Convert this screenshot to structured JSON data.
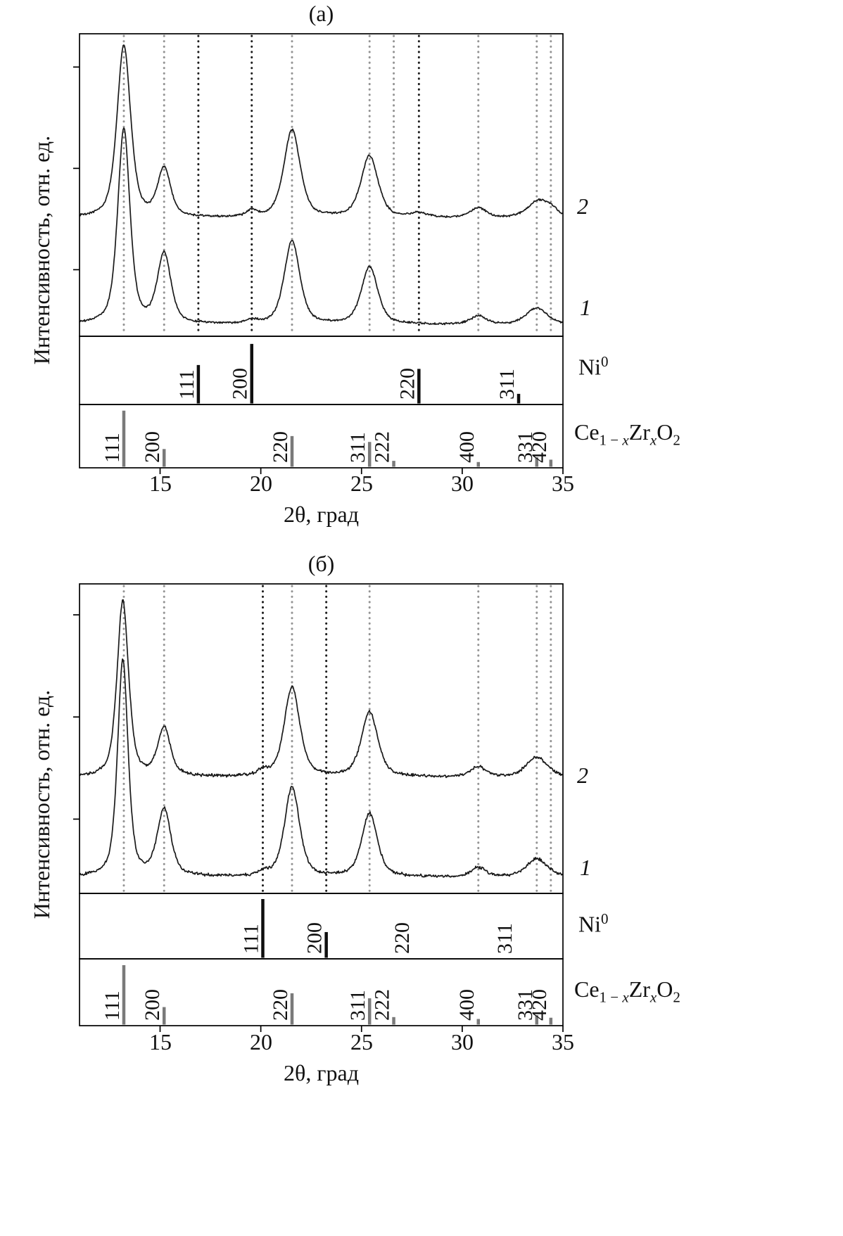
{
  "chart_data": [
    {
      "type": "line",
      "title": "(а)",
      "xlabel": "2θ, град",
      "ylabel": "Интенсивность, отн. ед.",
      "xlim": [
        11,
        35
      ],
      "x_ticks": [
        "15",
        "20",
        "25",
        "30",
        "35"
      ],
      "legend_position": "right",
      "ref_lines": {
        "gray_2theta": [
          13.2,
          15.2,
          21.55,
          25.4,
          26.6,
          30.8,
          33.7,
          34.4
        ],
        "black_2theta": [
          16.9,
          19.55,
          27.85
        ]
      },
      "series": [
        {
          "name": "2",
          "baseline": 0.61,
          "noise": 0.004,
          "peaks": [
            {
              "x": 13.2,
              "h": 0.57,
              "w": 0.4
            },
            {
              "x": 15.2,
              "h": 0.16,
              "w": 0.38
            },
            {
              "x": 19.55,
              "h": 0.02,
              "w": 0.3
            },
            {
              "x": 21.55,
              "h": 0.29,
              "w": 0.48
            },
            {
              "x": 25.4,
              "h": 0.205,
              "w": 0.5
            },
            {
              "x": 27.85,
              "h": 0.014,
              "w": 0.5
            },
            {
              "x": 30.8,
              "h": 0.033,
              "w": 0.45
            },
            {
              "x": 33.8,
              "h": 0.058,
              "w": 0.65
            },
            {
              "x": 34.45,
              "h": 0.016,
              "w": 0.35
            }
          ]
        },
        {
          "name": "1",
          "baseline": 0.962,
          "noise": 0.004,
          "peaks": [
            {
              "x": 13.2,
              "h": 0.645,
              "w": 0.36
            },
            {
              "x": 15.2,
              "h": 0.23,
              "w": 0.4
            },
            {
              "x": 19.55,
              "h": 0.012,
              "w": 0.3
            },
            {
              "x": 21.55,
              "h": 0.275,
              "w": 0.46
            },
            {
              "x": 25.4,
              "h": 0.19,
              "w": 0.48
            },
            {
              "x": 30.8,
              "h": 0.028,
              "w": 0.45
            },
            {
              "x": 33.7,
              "h": 0.055,
              "w": 0.62
            }
          ]
        }
      ],
      "ni_row": {
        "sticks": [
          {
            "x": 16.9,
            "h": 0.6,
            "hkl": "111"
          },
          {
            "x": 19.55,
            "h": 0.93,
            "hkl": "200"
          },
          {
            "x": 27.85,
            "h": 0.54,
            "hkl": "220"
          },
          {
            "x": 32.8,
            "h": 0.15,
            "hkl": "311"
          }
        ]
      },
      "cezr_row": {
        "sticks": [
          {
            "x": 13.2,
            "h": 0.95,
            "hkl": "111"
          },
          {
            "x": 15.2,
            "h": 0.3,
            "hkl": "200"
          },
          {
            "x": 21.55,
            "h": 0.52,
            "hkl": "220"
          },
          {
            "x": 25.4,
            "h": 0.42,
            "hkl": "311"
          },
          {
            "x": 26.6,
            "h": 0.1,
            "hkl": "222"
          },
          {
            "x": 30.8,
            "h": 0.08,
            "hkl": "400"
          },
          {
            "x": 33.7,
            "h": 0.16,
            "hkl": "331"
          },
          {
            "x": 34.4,
            "h": 0.12,
            "hkl": "420"
          }
        ]
      },
      "ni_label": {
        "base": "Ni",
        "sup": "0"
      },
      "cezr_label": {
        "p1": "Ce",
        "sub1": "1 − ",
        "sub1x": "x",
        "p2": "Zr",
        "sub2x": "x",
        "p3": "O",
        "sub3": "2"
      }
    },
    {
      "type": "line",
      "title": "(б)",
      "xlabel": "2θ, град",
      "ylabel": "Интенсивность, отн. ед.",
      "xlim": [
        11,
        35
      ],
      "x_ticks": [
        "15",
        "20",
        "25",
        "30",
        "35"
      ],
      "legend_position": "right",
      "ref_lines": {
        "gray_2theta": [
          13.2,
          15.2,
          21.55,
          25.4,
          30.8,
          33.7,
          34.4
        ],
        "black_2theta": [
          20.1,
          23.25
        ]
      },
      "series": [
        {
          "name": "2",
          "baseline": 0.625,
          "noise": 0.0058,
          "peaks": [
            {
              "x": 13.15,
              "h": 0.568,
              "w": 0.34
            },
            {
              "x": 15.2,
              "h": 0.155,
              "w": 0.38
            },
            {
              "x": 20.1,
              "h": 0.016,
              "w": 0.3
            },
            {
              "x": 21.55,
              "h": 0.29,
              "w": 0.46
            },
            {
              "x": 25.4,
              "h": 0.21,
              "w": 0.48
            },
            {
              "x": 30.8,
              "h": 0.032,
              "w": 0.45
            },
            {
              "x": 33.7,
              "h": 0.064,
              "w": 0.62
            }
          ]
        },
        {
          "name": "1",
          "baseline": 0.948,
          "noise": 0.0058,
          "peaks": [
            {
              "x": 13.15,
              "h": 0.7,
              "w": 0.31
            },
            {
              "x": 15.2,
              "h": 0.215,
              "w": 0.4
            },
            {
              "x": 20.1,
              "h": 0.012,
              "w": 0.3
            },
            {
              "x": 21.55,
              "h": 0.29,
              "w": 0.44
            },
            {
              "x": 25.4,
              "h": 0.205,
              "w": 0.46
            },
            {
              "x": 30.8,
              "h": 0.03,
              "w": 0.45
            },
            {
              "x": 33.7,
              "h": 0.06,
              "w": 0.62
            }
          ]
        }
      ],
      "ni_row": {
        "sticks": [
          {
            "x": 20.1,
            "h": 0.96,
            "hkl": "111"
          },
          {
            "x": 23.25,
            "h": 0.42,
            "hkl": "200"
          },
          {
            "x": 27.6,
            "h": 0,
            "hkl": "220"
          },
          {
            "x": 32.7,
            "h": 0,
            "hkl": "311"
          }
        ]
      },
      "cezr_row": {
        "sticks": [
          {
            "x": 13.2,
            "h": 0.95,
            "hkl": "111"
          },
          {
            "x": 15.2,
            "h": 0.28,
            "hkl": "200"
          },
          {
            "x": 21.55,
            "h": 0.5,
            "hkl": "220"
          },
          {
            "x": 25.4,
            "h": 0.42,
            "hkl": "311"
          },
          {
            "x": 26.6,
            "h": 0.12,
            "hkl": "222"
          },
          {
            "x": 30.8,
            "h": 0.09,
            "hkl": "400"
          },
          {
            "x": 33.7,
            "h": 0.15,
            "hkl": "331"
          },
          {
            "x": 34.4,
            "h": 0.11,
            "hkl": "420"
          }
        ]
      },
      "ni_label": {
        "base": "Ni",
        "sup": "0"
      },
      "cezr_label": {
        "p1": "Ce",
        "sub1": "1 − ",
        "sub1x": "x",
        "p2": "Zr",
        "sub2x": "x",
        "p3": "O",
        "sub3": "2"
      }
    }
  ]
}
